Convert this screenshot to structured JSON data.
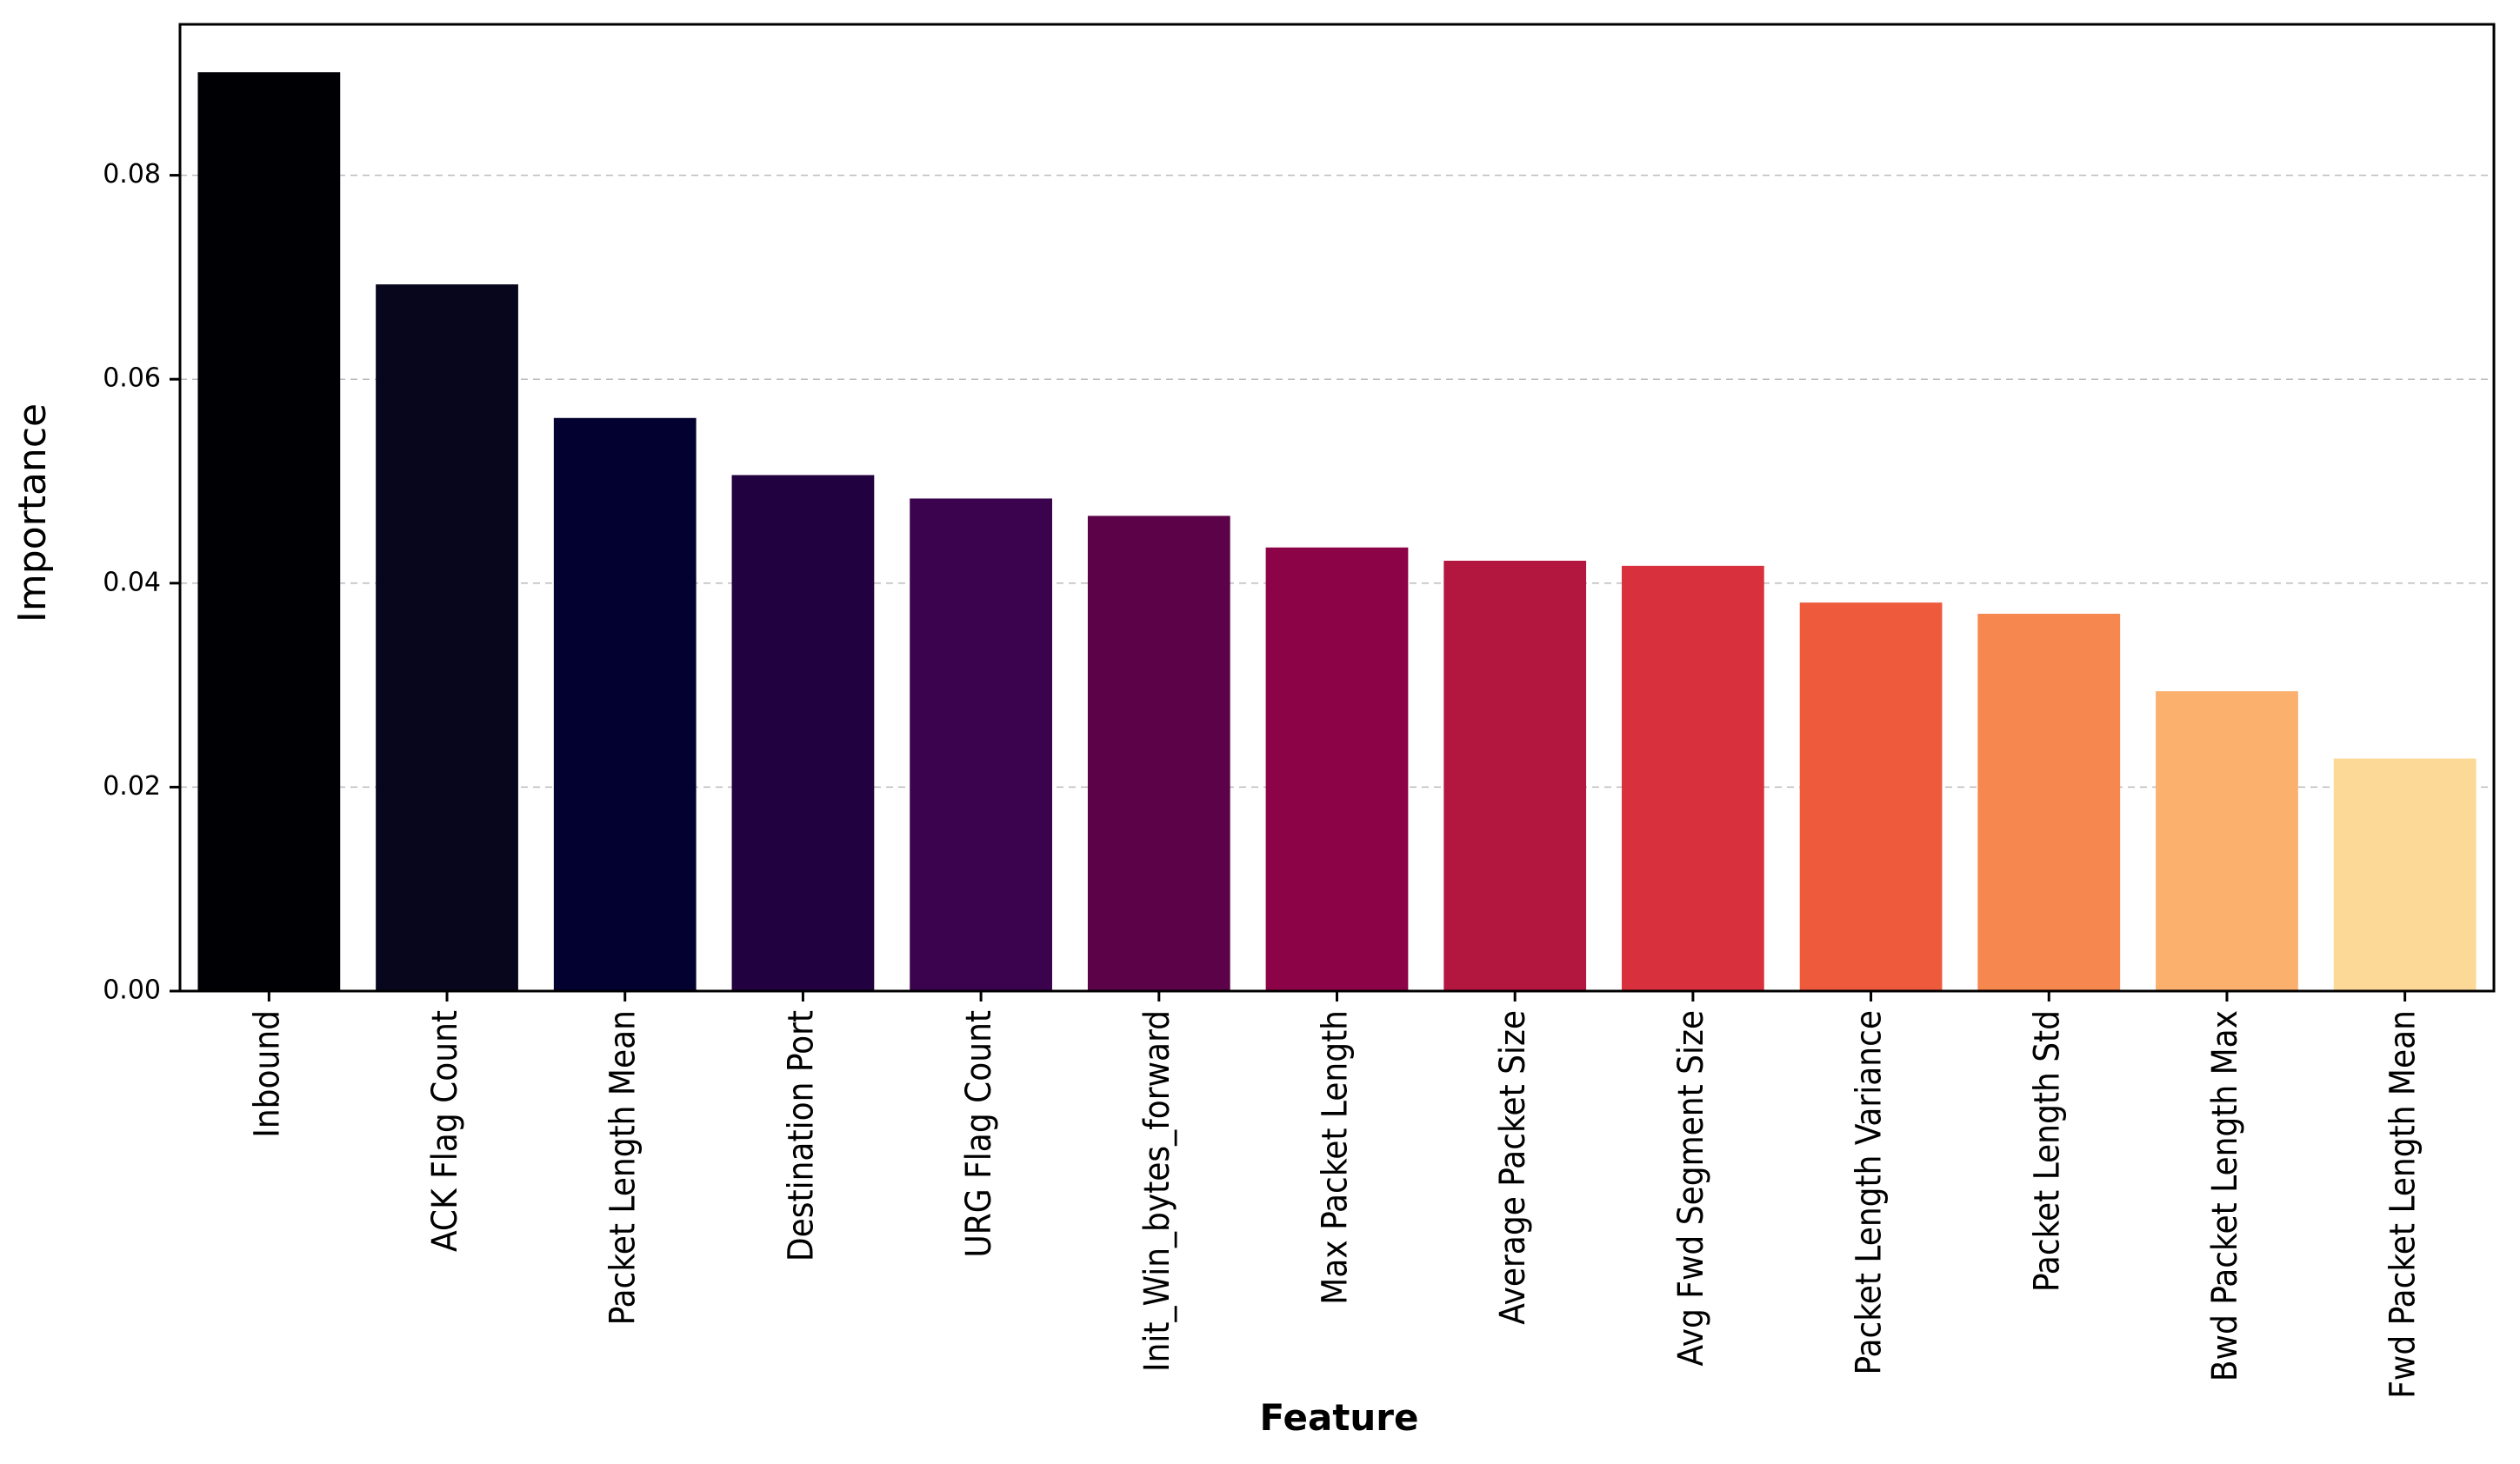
{
  "chart_data": {
    "type": "bar",
    "x_label": "Feature",
    "y_label": "Importance",
    "categories": [
      "Inbound",
      "ACK Flag Count",
      "Packet Length Mean",
      "Destination Port",
      "URG Flag Count",
      "Init_Win_bytes_forward",
      "Max Packet Length",
      "Average Packet Size",
      "Avg Fwd Segment Size",
      "Packet Length Variance",
      "Packet Length Std",
      "Bwd Packet Length Max",
      "Fwd Packet Length Mean"
    ],
    "values": [
      0.0901,
      0.0693,
      0.0562,
      0.0506,
      0.0483,
      0.0466,
      0.0435,
      0.0422,
      0.0417,
      0.0381,
      0.037,
      0.0294,
      0.0228
    ],
    "colors": [
      "#000004",
      "#07061c",
      "#03012f",
      "#220140",
      "#3b024e",
      "#5c0248",
      "#8c0348",
      "#b3173f",
      "#d8313d",
      "#ed5b3c",
      "#f6874e",
      "#fbb06e",
      "#fcd996"
    ],
    "ylim": [
      0,
      0.0948
    ],
    "yticks": [
      {
        "value": 0,
        "label": "0.00"
      },
      0.02,
      0.04,
      0.06,
      0.08
    ],
    "grid": true
  }
}
